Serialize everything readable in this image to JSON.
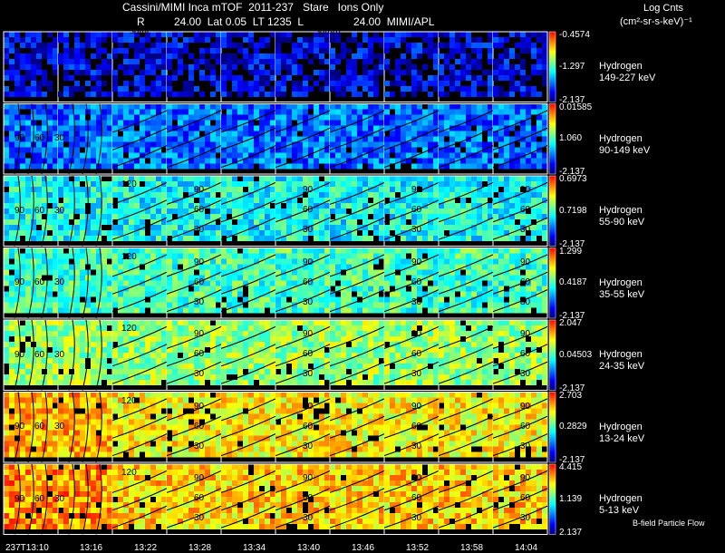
{
  "header": {
    "line1": "Cassini/MIMI Inca mTOF  2011-237   Stare   Ions Only",
    "line2_r": "R",
    "line2_mid": "24.00  Lat 0.05  LT 1235  L",
    "line2_right": "24.00  MIMI/APL",
    "units_title": "Log Cnts",
    "units": "(cm²-sr-s-keV)⁻¹"
  },
  "saturn_labels": [
    "satur",
    "saturn"
  ],
  "footer_note": "B-field Particle Flow",
  "chart_data": {
    "type": "heatmap",
    "x_tick_labels": [
      "237T13:10",
      "13:16",
      "13:22",
      "13:28",
      "13:34",
      "13:40",
      "13:46",
      "13:52",
      "13:58",
      "14:04"
    ],
    "rows": [
      {
        "species": "Hydrogen",
        "energy": "149-227 keV",
        "cb_max": "-0.4574",
        "cb_mid": "-1.297",
        "cb_min": "-2.137",
        "level": 0.12,
        "contours": [],
        "line_labels": []
      },
      {
        "species": "Hydrogen",
        "energy": "90-149 keV",
        "cb_max": "0.01585",
        "cb_mid": "1.060",
        "cb_min": "-2.137",
        "level": 0.26,
        "contours": [
          "90",
          "60",
          "30"
        ],
        "line_labels": []
      },
      {
        "species": "Hydrogen",
        "energy": "55-90 keV",
        "cb_max": "0.6973",
        "cb_mid": "0.7198",
        "cb_min": "-2.137",
        "level": 0.44,
        "contours": [
          "120",
          "90",
          "60",
          "30"
        ],
        "line_labels": [
          "90",
          "60",
          "30"
        ]
      },
      {
        "species": "Hydrogen",
        "energy": "35-55 keV",
        "cb_max": "1.299",
        "cb_mid": "0.4187",
        "cb_min": "-2.137",
        "level": 0.5,
        "contours": [
          "120",
          "90",
          "60",
          "30"
        ],
        "line_labels": [
          "90",
          "60",
          "30"
        ]
      },
      {
        "species": "Hydrogen",
        "energy": "24-35 keV",
        "cb_max": "2.047",
        "cb_mid": "0.04503",
        "cb_min": "-2.137",
        "level": 0.6,
        "contours": [
          "120",
          "90",
          "60",
          "30"
        ],
        "line_labels": [
          "90",
          "60",
          "30"
        ]
      },
      {
        "species": "Hydrogen",
        "energy": "13-24 keV",
        "cb_max": "2.703",
        "cb_mid": "0.2829",
        "cb_min": "-2.137",
        "level": 0.72,
        "contours": [
          "120",
          "90",
          "60",
          "30"
        ],
        "line_labels": [
          "90",
          "60",
          "30"
        ]
      },
      {
        "species": "Hydrogen",
        "energy": "5-13 keV",
        "cb_max": "4.415",
        "cb_mid": "1.139",
        "cb_min": "2.137",
        "level": 0.76,
        "contours": [
          "120",
          "90",
          "60",
          "30"
        ],
        "line_labels": [
          "90",
          "60",
          "30"
        ]
      }
    ],
    "colormap": [
      "#000080",
      "#0000ff",
      "#0080ff",
      "#00ffff",
      "#80ff80",
      "#ffff00",
      "#ff8000",
      "#ff0000"
    ]
  }
}
